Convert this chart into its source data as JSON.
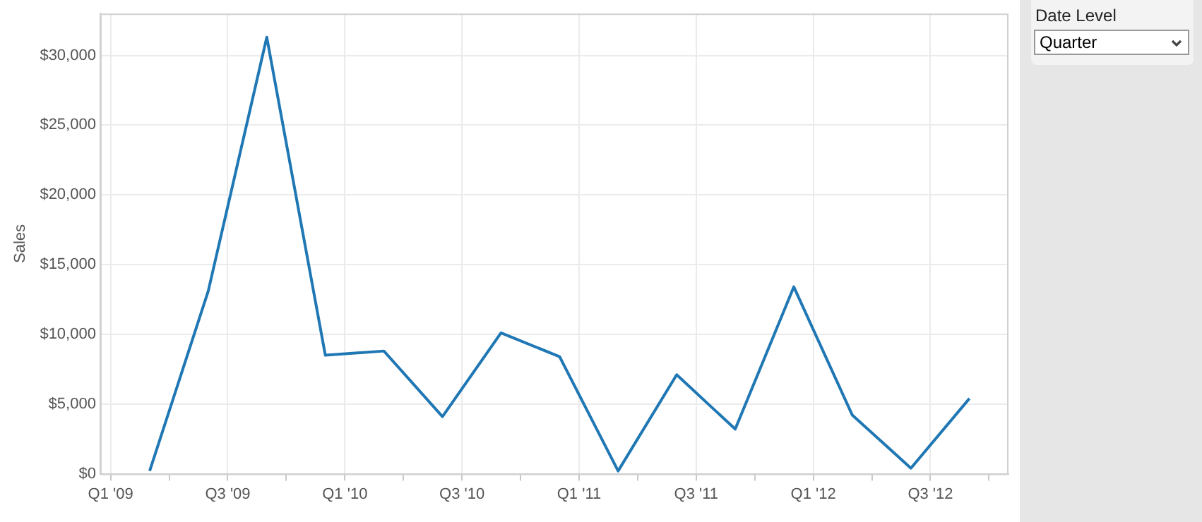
{
  "chart_data": {
    "type": "line",
    "ylabel": "Sales",
    "x": [
      "2009-03",
      "2009-06",
      "2009-09",
      "2009-12",
      "2010-03",
      "2010-06",
      "2010-09",
      "2010-12",
      "2011-03",
      "2011-06",
      "2011-09",
      "2011-12",
      "2012-03",
      "2012-06",
      "2012-09"
    ],
    "series": [
      {
        "color": "#1f77b4",
        "values": [
          200,
          13100,
          31300,
          8500,
          8800,
          4100,
          10100,
          8400,
          200,
          7100,
          3200,
          13400,
          4200,
          400,
          5400
        ]
      }
    ],
    "xlim": [
      "2008-12-15",
      "2012-11-01"
    ],
    "xticks": [
      {
        "value": "2009-01",
        "label": "Q1 '09"
      },
      {
        "value": "2009-04",
        "label": null
      },
      {
        "value": "2009-07",
        "label": "Q3 '09"
      },
      {
        "value": "2009-10",
        "label": null
      },
      {
        "value": "2010-01",
        "label": "Q1 '10"
      },
      {
        "value": "2010-04",
        "label": null
      },
      {
        "value": "2010-07",
        "label": "Q3 '10"
      },
      {
        "value": "2010-10",
        "label": null
      },
      {
        "value": "2011-01",
        "label": "Q1 '11"
      },
      {
        "value": "2011-04",
        "label": null
      },
      {
        "value": "2011-07",
        "label": "Q3 '11"
      },
      {
        "value": "2011-10",
        "label": null
      },
      {
        "value": "2012-01",
        "label": "Q1 '12"
      },
      {
        "value": "2012-04",
        "label": null
      },
      {
        "value": "2012-07",
        "label": "Q3 '12"
      },
      {
        "value": "2012-10",
        "label": null
      }
    ],
    "ylim": [
      0,
      33000
    ],
    "yticks": [
      {
        "value": 0,
        "label": "$0"
      },
      {
        "value": 5000,
        "label": "$5,000"
      },
      {
        "value": 10000,
        "label": "$10,000"
      },
      {
        "value": 15000,
        "label": "$15,000"
      },
      {
        "value": 20000,
        "label": "$20,000"
      },
      {
        "value": 25000,
        "label": "$25,000"
      },
      {
        "value": 30000,
        "label": "$30,000"
      }
    ],
    "grid": true,
    "legend": false,
    "marker": "none",
    "line_style": "solid",
    "annotations": [
      "Date Level",
      "Quarter"
    ]
  }
}
